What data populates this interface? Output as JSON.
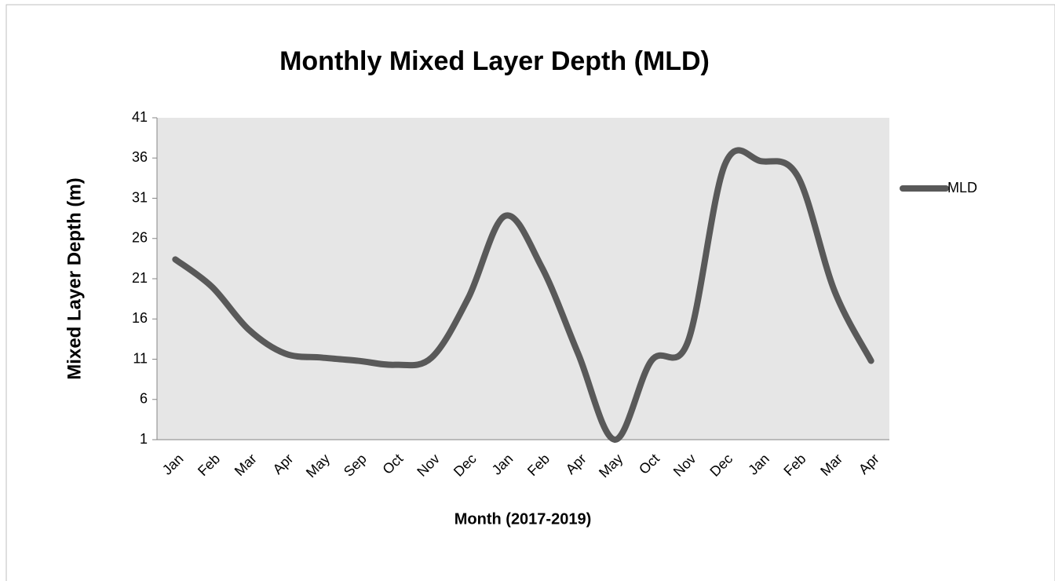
{
  "chart_data": {
    "type": "line",
    "title": "Monthly Mixed Layer Depth (MLD)",
    "x_label": "Month (2017-2019)",
    "y_label": "Mixed Layer Depth (m)",
    "categories": [
      "Jan",
      "Feb",
      "Mar",
      "Apr",
      "May",
      "Sep",
      "Oct",
      "Nov",
      "Dec",
      "Jan",
      "Feb",
      "Apr",
      "May",
      "Oct",
      "Nov",
      "Dec",
      "Jan",
      "Feb",
      "Mar",
      "Apr"
    ],
    "series": [
      {
        "name": "MLD",
        "color": "#595959",
        "values": [
          23.4,
          20,
          14.7,
          11.7,
          11.2,
          10.8,
          10.3,
          11.2,
          18.6,
          28.8,
          22.5,
          11.7,
          1,
          10.8,
          13.2,
          35.1,
          35.6,
          33.7,
          19.5,
          10.8
        ]
      }
    ],
    "ylim": [
      1,
      41
    ],
    "yticks": [
      1,
      6,
      11,
      16,
      21,
      26,
      31,
      36,
      41
    ],
    "legend": "right",
    "plot_background": "#e6e6e6"
  }
}
